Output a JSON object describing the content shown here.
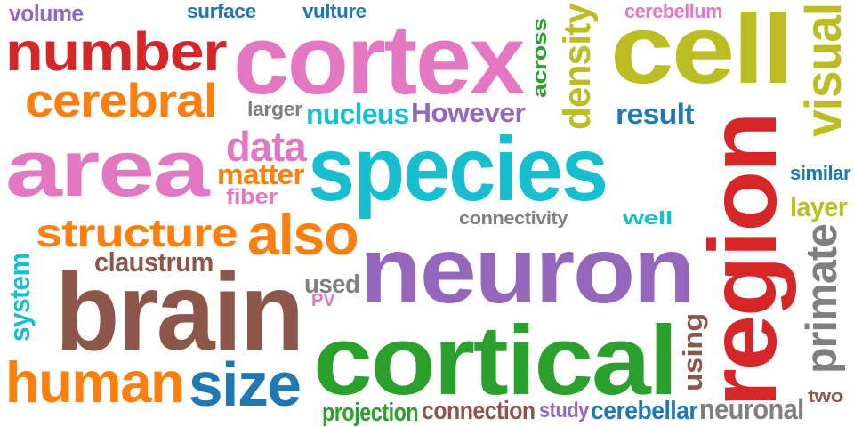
{
  "palette": {
    "blue": "#1f77b4",
    "orange": "#ff7f0e",
    "green": "#2ca02c",
    "red": "#d62728",
    "purple": "#9467bd",
    "brown": "#8c564b",
    "pink": "#e377c2",
    "gray": "#7f7f7f",
    "olive": "#bcbd22",
    "cyan": "#17becf",
    "background": "#ffffff"
  },
  "words": [
    {
      "text": "volume",
      "color": "purple"
    },
    {
      "text": "surface",
      "color": "blue"
    },
    {
      "text": "vulture",
      "color": "blue"
    },
    {
      "text": "cerebellum",
      "color": "pink"
    },
    {
      "text": "number",
      "color": "red"
    },
    {
      "text": "cortex",
      "color": "pink"
    },
    {
      "text": "across",
      "color": "green"
    },
    {
      "text": "density",
      "color": "olive"
    },
    {
      "text": "cell",
      "color": "olive"
    },
    {
      "text": "visual",
      "color": "olive"
    },
    {
      "text": "cerebral",
      "color": "orange"
    },
    {
      "text": "larger",
      "color": "gray"
    },
    {
      "text": "nucleus",
      "color": "cyan"
    },
    {
      "text": "However",
      "color": "purple"
    },
    {
      "text": "result",
      "color": "blue"
    },
    {
      "text": "area",
      "color": "pink"
    },
    {
      "text": "data",
      "color": "pink"
    },
    {
      "text": "matter",
      "color": "orange"
    },
    {
      "text": "fiber",
      "color": "pink"
    },
    {
      "text": "species",
      "color": "cyan"
    },
    {
      "text": "region",
      "color": "red"
    },
    {
      "text": "similar",
      "color": "blue"
    },
    {
      "text": "layer",
      "color": "olive"
    },
    {
      "text": "structure",
      "color": "orange"
    },
    {
      "text": "also",
      "color": "orange"
    },
    {
      "text": "connectivity",
      "color": "gray"
    },
    {
      "text": "well",
      "color": "cyan"
    },
    {
      "text": "neuron",
      "color": "purple"
    },
    {
      "text": "primate",
      "color": "gray"
    },
    {
      "text": "claustrum",
      "color": "brown"
    },
    {
      "text": "system",
      "color": "cyan"
    },
    {
      "text": "brain",
      "color": "brown"
    },
    {
      "text": "used",
      "color": "gray"
    },
    {
      "text": "PV",
      "color": "pink"
    },
    {
      "text": "cortical",
      "color": "green"
    },
    {
      "text": "using",
      "color": "brown"
    },
    {
      "text": "human",
      "color": "orange"
    },
    {
      "text": "size",
      "color": "blue"
    },
    {
      "text": "two",
      "color": "brown"
    },
    {
      "text": "projection",
      "color": "green"
    },
    {
      "text": "connection",
      "color": "brown"
    },
    {
      "text": "study",
      "color": "purple"
    },
    {
      "text": "cerebellar",
      "color": "blue"
    },
    {
      "text": "neuronal",
      "color": "gray"
    }
  ]
}
